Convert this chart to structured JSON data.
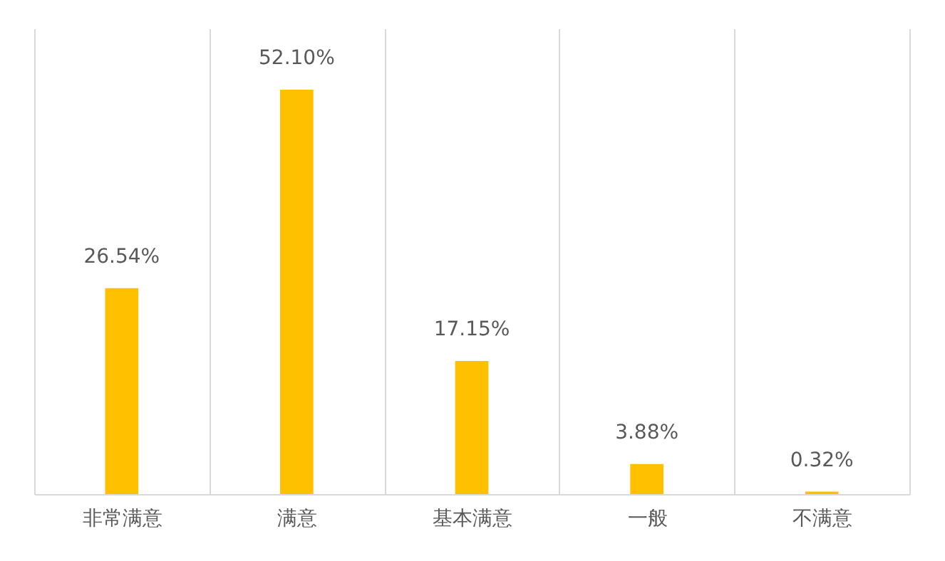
{
  "chart_data": {
    "type": "bar",
    "categories": [
      "非常满意",
      "满意",
      "基本满意",
      "一般",
      "不满意"
    ],
    "values": [
      26.54,
      52.1,
      17.15,
      3.88,
      0.32
    ],
    "value_labels": [
      "26.54%",
      "52.10%",
      "17.15%",
      "3.88%",
      "0.32%"
    ],
    "color": "#ffc000",
    "ylim": [
      0,
      60
    ],
    "grid": "x"
  }
}
